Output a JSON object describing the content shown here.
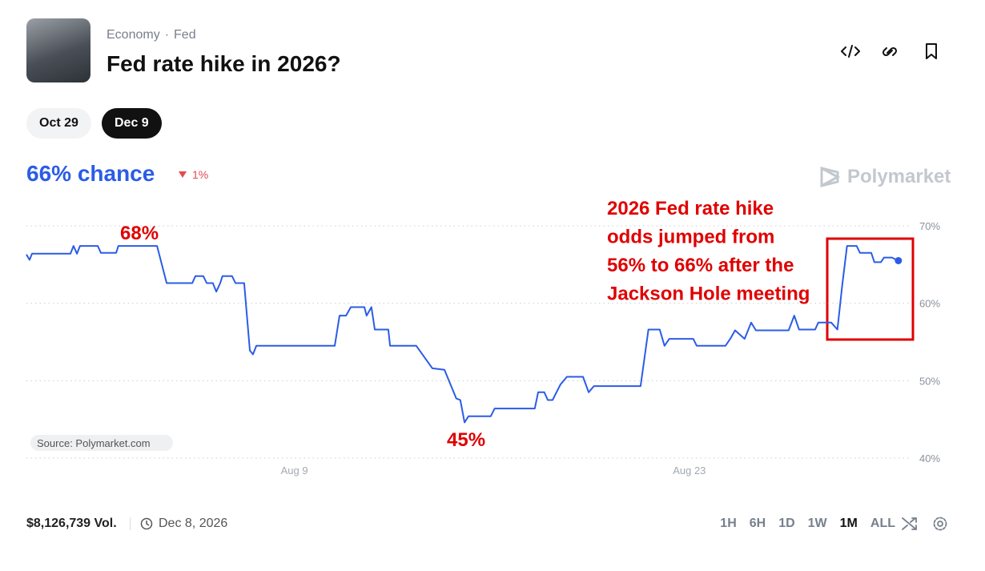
{
  "header": {
    "breadcrumb": [
      "Economy",
      "Fed"
    ],
    "title": "Fed rate hike in 2026?"
  },
  "tabs": [
    "Oct 29",
    "Dec 9"
  ],
  "chance": {
    "label": "66% chance",
    "change": "1%"
  },
  "brand": "Polymarket",
  "chart_data": {
    "type": "line",
    "color": "#2b5ce6",
    "grid": true,
    "source": "Source: Polymarket.com",
    "annotations": {
      "high": "68%",
      "low": "45%",
      "note": [
        "2026 Fed rate hike",
        "odds jumped from",
        "56% to 66% after the",
        "Jackson Hole meeting"
      ]
    },
    "xlim": [
      -0.5,
      30.5
    ],
    "xticks": [
      {
        "value": 9,
        "label": "Aug 9"
      },
      {
        "value": 23,
        "label": "Aug 23"
      }
    ],
    "ylim": [
      40,
      70
    ],
    "yticks": [
      {
        "value": 40,
        "label": "40%"
      },
      {
        "value": 50,
        "label": "50%"
      },
      {
        "value": 60,
        "label": "60%"
      },
      {
        "value": 70,
        "label": "70%"
      }
    ],
    "x": [
      -0.5,
      -0.39,
      -0.3,
      1.06,
      1.17,
      1.29,
      1.4,
      2.03,
      2.14,
      2.68,
      2.76,
      4.13,
      4.47,
      5.38,
      5.49,
      5.77,
      5.89,
      6.11,
      6.23,
      6.37,
      6.45,
      6.79,
      6.91,
      7.22,
      7.42,
      7.53,
      7.65,
      10.43,
      10.6,
      10.83,
      11.0,
      11.48,
      11.56,
      11.73,
      11.85,
      12.33,
      12.39,
      13.32,
      13.89,
      14.32,
      14.74,
      14.88,
      15.03,
      15.17,
      15.96,
      16.1,
      17.52,
      17.64,
      17.86,
      17.98,
      18.15,
      18.43,
      18.66,
      19.23,
      19.43,
      19.62,
      21.27,
      21.55,
      21.95,
      22.12,
      22.29,
      23.14,
      23.26,
      24.28,
      24.45,
      24.62,
      24.96,
      25.19,
      25.36,
      26.52,
      26.72,
      26.89,
      27.46,
      27.57,
      28.03,
      28.25,
      28.42,
      28.59,
      28.93,
      29.05,
      29.45,
      29.56,
      29.79,
      29.9,
      30.18,
      30.41
    ],
    "values": [
      66.3,
      65.6,
      66.4,
      66.4,
      67.4,
      66.4,
      67.4,
      67.4,
      66.5,
      66.5,
      67.4,
      67.4,
      62.6,
      62.6,
      63.5,
      63.5,
      62.6,
      62.6,
      61.5,
      62.6,
      63.5,
      63.5,
      62.6,
      62.6,
      53.9,
      53.4,
      54.5,
      54.5,
      58.4,
      58.4,
      59.5,
      59.5,
      58.4,
      59.5,
      56.6,
      56.6,
      54.5,
      54.5,
      51.6,
      51.4,
      47.7,
      47.5,
      44.6,
      45.4,
      45.4,
      46.4,
      46.4,
      48.5,
      48.5,
      47.5,
      47.5,
      49.5,
      50.5,
      50.5,
      48.5,
      49.3,
      49.3,
      56.6,
      56.6,
      54.5,
      55.4,
      55.4,
      54.5,
      54.5,
      55.4,
      56.5,
      55.4,
      57.5,
      56.5,
      56.5,
      58.4,
      56.6,
      56.6,
      57.5,
      57.5,
      56.6,
      62.3,
      67.4,
      67.4,
      66.5,
      66.5,
      65.3,
      65.3,
      65.9,
      65.9,
      65.5
    ]
  },
  "footer": {
    "volume": "$8,126,739 Vol.",
    "date": "Dec 8, 2026",
    "ranges": [
      "1H",
      "6H",
      "1D",
      "1W",
      "1M",
      "ALL"
    ],
    "active": "1M"
  }
}
